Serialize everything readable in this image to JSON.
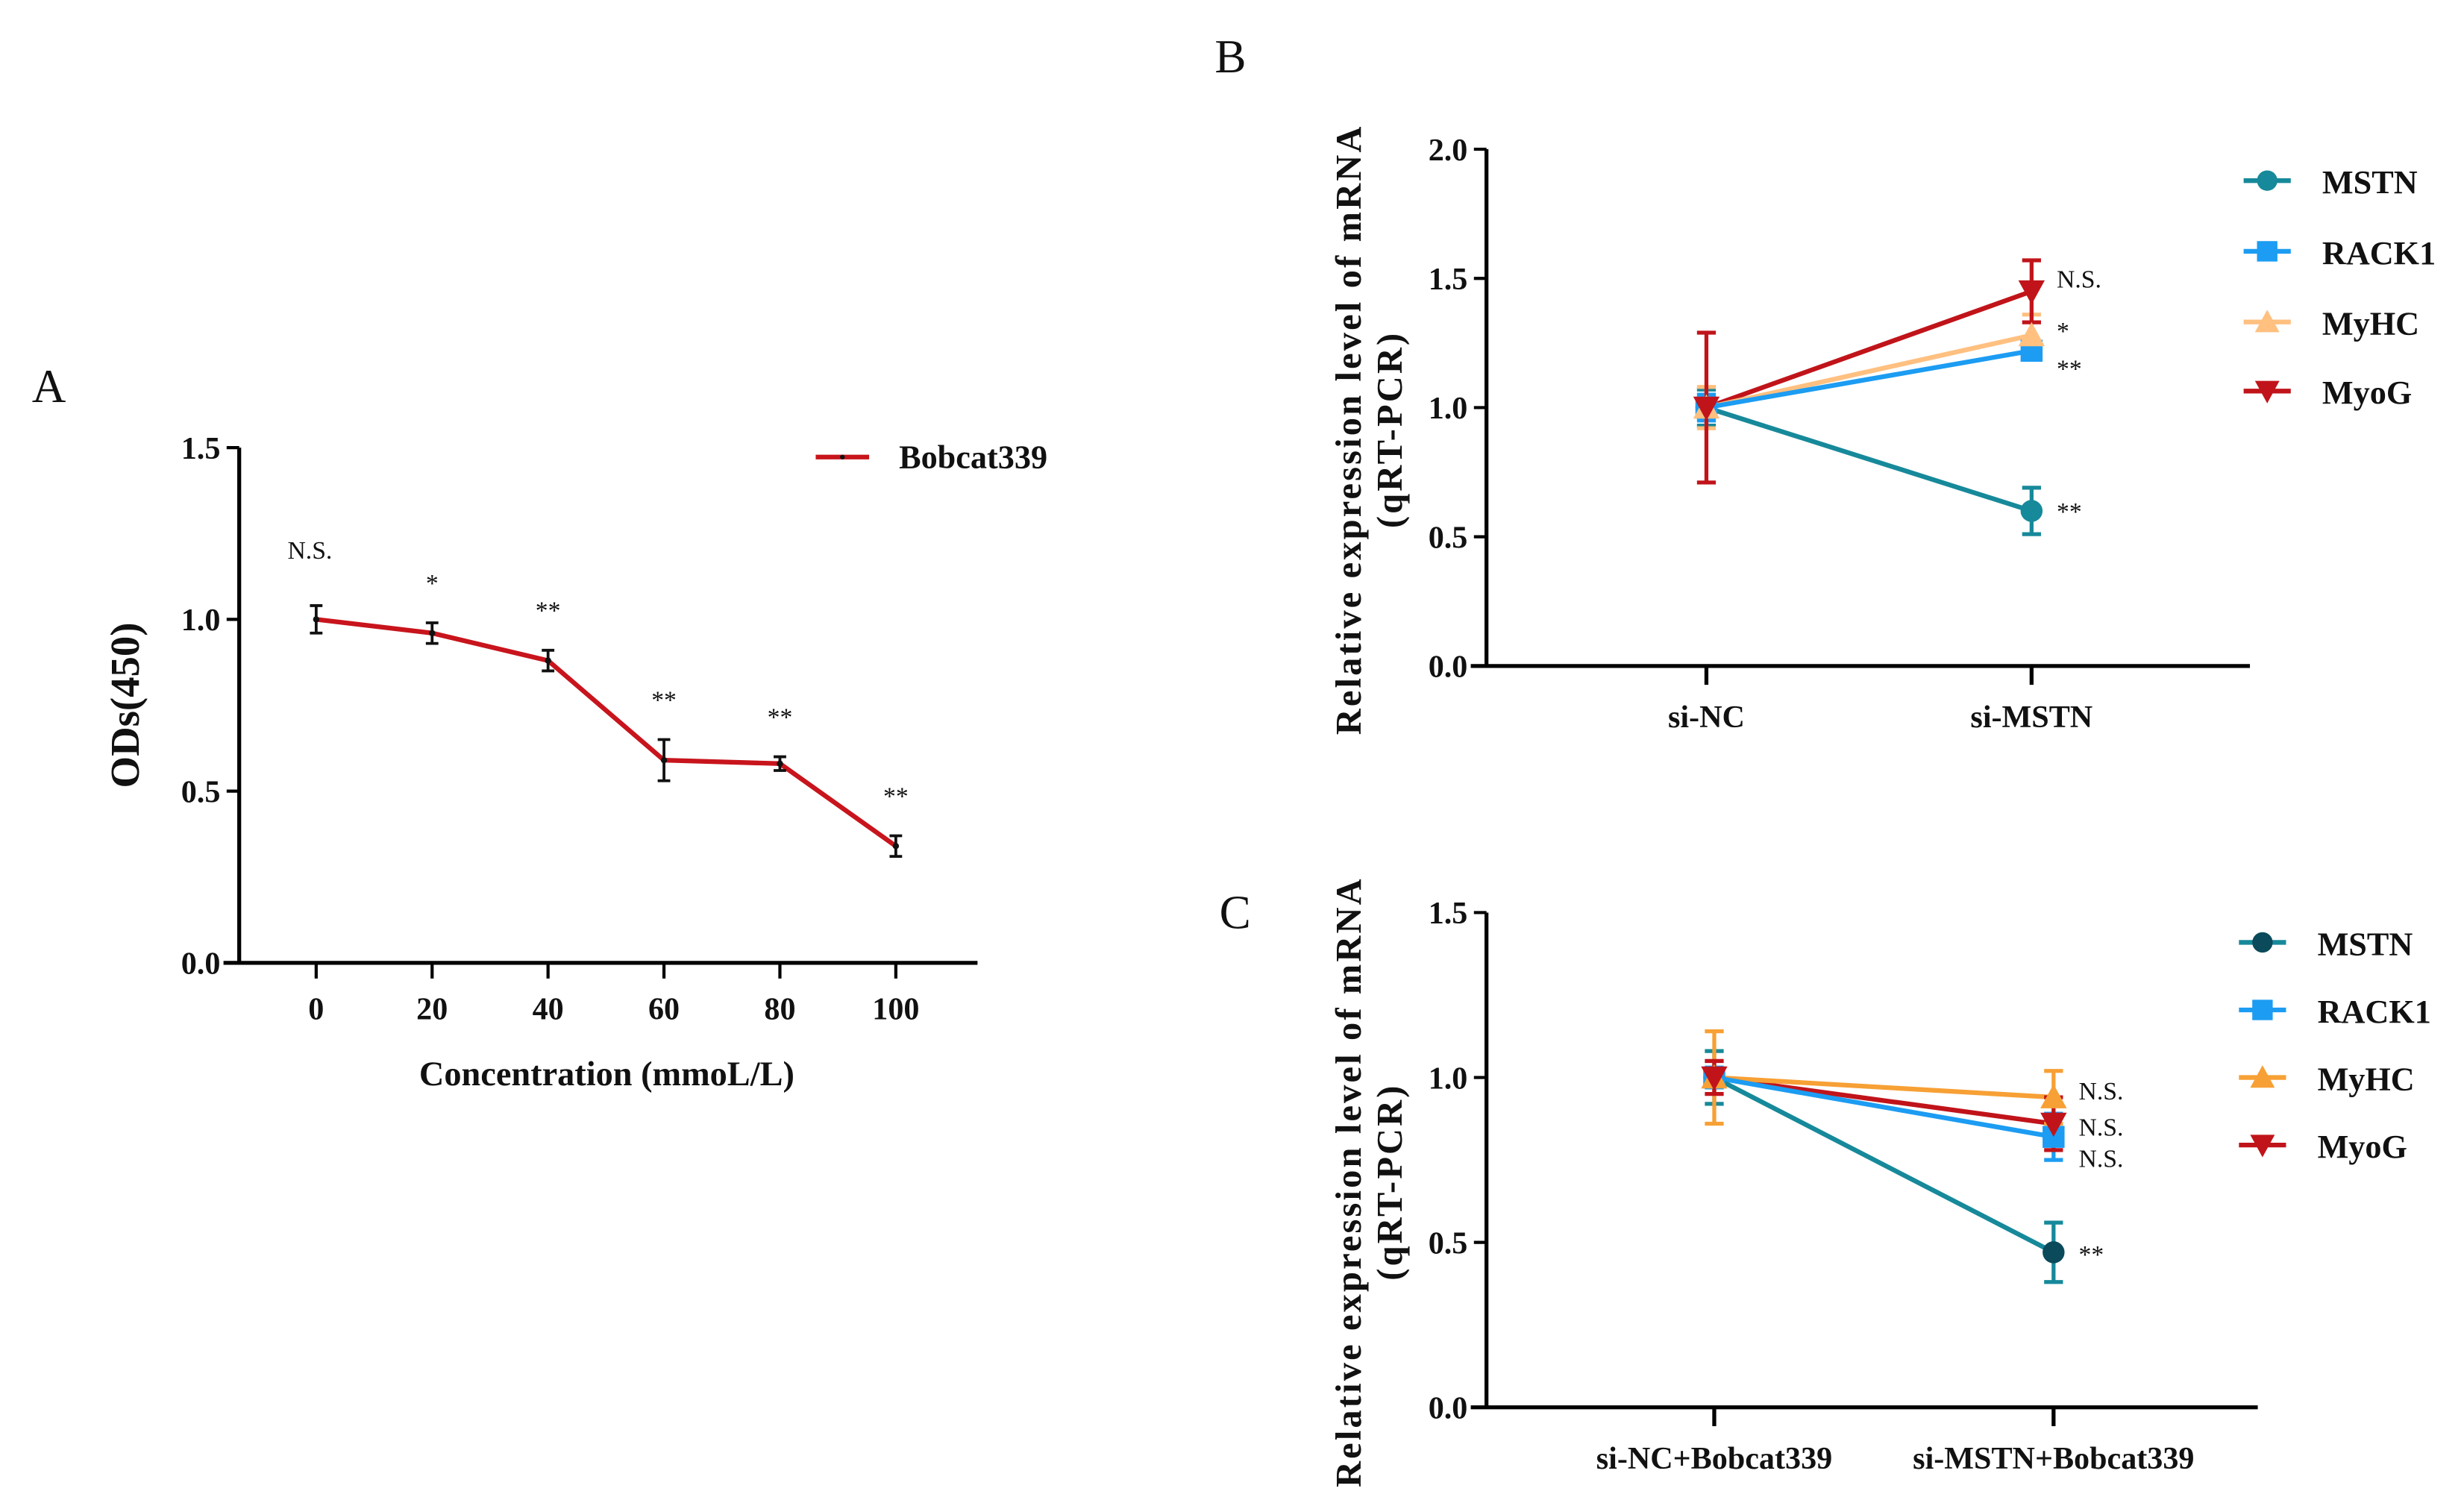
{
  "chart_data": [
    {
      "panel": "A",
      "type": "line",
      "xlabel": "Concentration (mmoL/L)",
      "ylabel": "ODs(450)",
      "ylim": [
        0,
        1.5
      ],
      "yticks": [
        "0.0",
        "0.5",
        "1.0",
        "1.5"
      ],
      "x": [
        0,
        20,
        40,
        60,
        80,
        100
      ],
      "xticks": [
        "0",
        "20",
        "40",
        "60",
        "80",
        "100"
      ],
      "legend_position": "top-right",
      "series": [
        {
          "name": "Bobcat339",
          "color": "#c8141c",
          "values": [
            1.0,
            0.96,
            0.88,
            0.59,
            0.58,
            0.34
          ],
          "errors": [
            0.04,
            0.03,
            0.03,
            0.06,
            0.02,
            0.03
          ]
        }
      ],
      "annotations": [
        "N.S.",
        "*",
        "**",
        "**",
        "**",
        "**"
      ]
    },
    {
      "panel": "B",
      "type": "line",
      "xlabel": "",
      "ylabel": "Relative expression level of mRNA",
      "ylabel2": "(qRT-PCR)",
      "ylim": [
        0,
        2.0
      ],
      "yticks": [
        "0.0",
        "0.5",
        "1.0",
        "1.5",
        "2.0"
      ],
      "categories": [
        "si-NC",
        "si-MSTN"
      ],
      "legend_position": "right",
      "series": [
        {
          "name": "MSTN",
          "marker": "circle",
          "color": "#16899a",
          "values": [
            1.0,
            0.6
          ],
          "errors": [
            0.07,
            0.09
          ],
          "annotation": "**"
        },
        {
          "name": "RACK1",
          "marker": "square",
          "color": "#1c9cf2",
          "values": [
            1.0,
            1.22
          ],
          "errors": [
            0.05,
            0.03
          ],
          "annotation": "**"
        },
        {
          "name": "MyHC",
          "marker": "triangle-up",
          "color": "#ffc080",
          "values": [
            1.0,
            1.28
          ],
          "errors": [
            0.08,
            0.08
          ],
          "annotation": "*"
        },
        {
          "name": "MyoG",
          "marker": "triangle-down",
          "color": "#c0141a",
          "values": [
            1.0,
            1.45
          ],
          "errors": [
            0.29,
            0.12
          ],
          "annotation": "N.S."
        }
      ]
    },
    {
      "panel": "C",
      "type": "line",
      "xlabel": "",
      "ylabel": "Relative expression level of mRNA",
      "ylabel2": "(qRT-PCR)",
      "ylim": [
        0,
        1.5
      ],
      "yticks": [
        "0.0",
        "0.5",
        "1.0",
        "1.5"
      ],
      "categories": [
        "si-NC+Bobcat339",
        "si-MSTN+Bobcat339"
      ],
      "legend_position": "right",
      "series": [
        {
          "name": "MSTN",
          "marker": "circle",
          "color": "#16899a",
          "marker_color": "#0b4a5a",
          "values": [
            1.0,
            0.47
          ],
          "errors": [
            0.08,
            0.09
          ],
          "annotation": "**"
        },
        {
          "name": "RACK1",
          "marker": "square",
          "color": "#1c9cf2",
          "values": [
            1.0,
            0.82
          ],
          "errors": [
            0.03,
            0.07
          ],
          "annotation": "N.S."
        },
        {
          "name": "MyHC",
          "marker": "triangle-up",
          "color": "#f7a035",
          "values": [
            1.0,
            0.94
          ],
          "errors": [
            0.14,
            0.08
          ],
          "annotation": "N.S."
        },
        {
          "name": "MyoG",
          "marker": "triangle-down",
          "color": "#c0141a",
          "values": [
            1.0,
            0.86
          ],
          "errors": [
            0.05,
            0.08
          ],
          "annotation": "N.S."
        }
      ]
    }
  ]
}
